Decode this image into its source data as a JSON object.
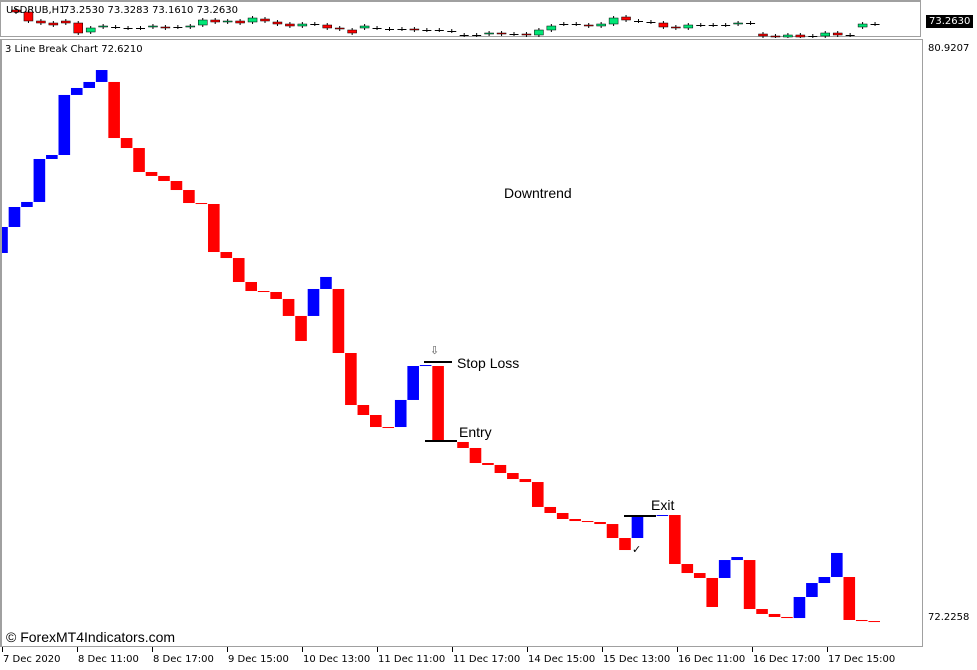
{
  "header": {
    "symbol_info": "USDRUB,H1",
    "ohlc": "73.2530 73.3283 73.1610 73.2630",
    "current_price": "73.2630"
  },
  "indicator": {
    "title": "3 Line Break Chart 72.6210"
  },
  "colors": {
    "up_brick": "#0000ff",
    "down_brick": "#ff0000",
    "bull_candle": "#00e676",
    "bear_candle": "#ff0000",
    "level_line": "#000000"
  },
  "price_axis": {
    "top_label": "80.9207",
    "bottom_label": "72.2258",
    "top_value": 80.9207,
    "bottom_value": 72.2258
  },
  "time_axis": [
    "7 Dec 2020",
    "8 Dec 11:00",
    "8 Dec 17:00",
    "9 Dec 15:00",
    "10 Dec 13:00",
    "11 Dec 11:00",
    "11 Dec 17:00",
    "14 Dec 15:00",
    "15 Dec 13:00",
    "16 Dec 11:00",
    "16 Dec 17:00",
    "17 Dec 15:00"
  ],
  "annotations": {
    "downtrend": "Downtrend",
    "stop_loss": {
      "label": "Stop Loss",
      "price": 76.129,
      "arrow_icon": "down-arrow-icon"
    },
    "entry": {
      "label": "Entry",
      "price": 74.92
    },
    "exit": {
      "label": "Exit",
      "price": 73.772,
      "check_icon": "check-icon"
    }
  },
  "watermark": "© ForexMT4Indicators.com",
  "chart_data": {
    "type": "three-line-break",
    "title": "3 Line Break Chart 72.6210",
    "bricks": [
      [
        77.798,
        78.196
      ],
      [
        78.196,
        78.502
      ],
      [
        78.502,
        78.579
      ],
      [
        78.579,
        79.237
      ],
      [
        79.237,
        79.298
      ],
      [
        79.298,
        80.217
      ],
      [
        80.217,
        80.324
      ],
      [
        80.324,
        80.416
      ],
      [
        80.416,
        80.599
      ],
      [
        80.416,
        79.558
      ],
      [
        79.558,
        79.405
      ],
      [
        79.405,
        79.038
      ],
      [
        79.038,
        78.977
      ],
      [
        78.977,
        78.9
      ],
      [
        78.9,
        78.762
      ],
      [
        78.762,
        78.563
      ],
      [
        78.563,
        78.548
      ],
      [
        78.548,
        77.813
      ],
      [
        77.813,
        77.721
      ],
      [
        77.721,
        77.354
      ],
      [
        77.354,
        77.216
      ],
      [
        77.216,
        77.201
      ],
      [
        77.201,
        77.094
      ],
      [
        77.094,
        76.834
      ],
      [
        76.834,
        76.451
      ],
      [
        76.834,
        77.247
      ],
      [
        77.247,
        77.431
      ],
      [
        77.247,
        76.267
      ],
      [
        76.267,
        75.471
      ],
      [
        75.471,
        75.318
      ],
      [
        75.318,
        75.134
      ],
      [
        75.134,
        75.119
      ],
      [
        75.134,
        75.548
      ],
      [
        75.548,
        76.068
      ],
      [
        76.068,
        76.083
      ],
      [
        76.068,
        74.92
      ],
      [
        74.92,
        74.905
      ],
      [
        74.905,
        74.813
      ],
      [
        74.813,
        74.583
      ],
      [
        74.583,
        74.553
      ],
      [
        74.553,
        74.43
      ],
      [
        74.43,
        74.338
      ],
      [
        74.338,
        74.292
      ],
      [
        74.292,
        73.91
      ],
      [
        73.91,
        73.818
      ],
      [
        73.818,
        73.726
      ],
      [
        73.726,
        73.695
      ],
      [
        73.695,
        73.68
      ],
      [
        73.68,
        73.649
      ],
      [
        73.649,
        73.435
      ],
      [
        73.435,
        73.251
      ],
      [
        73.435,
        73.757
      ],
      [
        73.757,
        73.772
      ],
      [
        73.772,
        73.787
      ],
      [
        73.787,
        73.037
      ],
      [
        73.037,
        72.899
      ],
      [
        72.899,
        72.823
      ],
      [
        72.823,
        72.379
      ],
      [
        72.823,
        73.098
      ],
      [
        73.098,
        73.144
      ],
      [
        73.098,
        72.348
      ],
      [
        72.348,
        72.272
      ],
      [
        72.272,
        72.226
      ],
      [
        72.226,
        72.21
      ],
      [
        72.21,
        72.532
      ],
      [
        72.532,
        72.746
      ],
      [
        72.746,
        72.838
      ],
      [
        72.838,
        73.206
      ],
      [
        72.838,
        72.18
      ],
      [
        72.18,
        72.164
      ],
      [
        72.164,
        72.149
      ]
    ],
    "ylim": [
      72.2258,
      80.9207
    ],
    "mini_candles": [
      [
        73.42,
        73.4
      ],
      [
        73.4,
        73.31
      ],
      [
        73.31,
        73.29
      ],
      [
        73.29,
        73.27
      ],
      [
        73.31,
        73.29
      ],
      [
        73.29,
        73.19
      ],
      [
        73.2,
        73.24
      ],
      [
        73.25,
        73.26
      ],
      [
        73.25,
        73.25
      ],
      [
        73.24,
        73.24
      ],
      [
        73.24,
        73.24
      ],
      [
        73.25,
        73.26
      ],
      [
        73.25,
        73.24
      ],
      [
        73.25,
        73.25
      ],
      [
        73.25,
        73.26
      ],
      [
        73.27,
        73.32
      ],
      [
        73.32,
        73.3
      ],
      [
        73.3,
        73.31
      ],
      [
        73.31,
        73.29
      ],
      [
        73.3,
        73.34
      ],
      [
        73.33,
        73.31
      ],
      [
        73.3,
        73.28
      ],
      [
        73.28,
        73.26
      ],
      [
        73.26,
        73.28
      ],
      [
        73.28,
        73.28
      ],
      [
        73.27,
        73.24
      ],
      [
        73.24,
        73.23
      ],
      [
        73.22,
        73.19
      ],
      [
        73.24,
        73.26
      ],
      [
        73.24,
        73.24
      ],
      [
        73.23,
        73.23
      ],
      [
        73.23,
        73.23
      ],
      [
        73.23,
        73.22
      ],
      [
        73.22,
        73.22
      ],
      [
        73.22,
        73.22
      ],
      [
        73.21,
        73.21
      ],
      [
        73.17,
        73.17
      ],
      [
        73.17,
        73.17
      ],
      [
        73.18,
        73.19
      ],
      [
        73.19,
        73.18
      ],
      [
        73.18,
        73.18
      ],
      [
        73.18,
        73.17
      ],
      [
        73.17,
        73.22
      ],
      [
        73.22,
        73.26
      ],
      [
        73.28,
        73.28
      ],
      [
        73.28,
        73.28
      ],
      [
        73.27,
        73.26
      ],
      [
        73.26,
        73.28
      ],
      [
        73.28,
        73.34
      ],
      [
        73.35,
        73.32
      ],
      [
        73.31,
        73.31
      ],
      [
        73.3,
        73.3
      ],
      [
        73.29,
        73.25
      ],
      [
        73.25,
        73.24
      ],
      [
        73.24,
        73.27
      ],
      [
        73.27,
        73.27
      ],
      [
        73.27,
        73.27
      ],
      [
        73.27,
        73.27
      ],
      [
        73.28,
        73.29
      ],
      [
        73.29,
        73.29
      ],
      [
        73.18,
        73.16
      ],
      [
        73.16,
        73.15
      ],
      [
        73.15,
        73.17
      ],
      [
        73.17,
        73.15
      ],
      [
        73.16,
        73.16
      ],
      [
        73.16,
        73.19
      ],
      [
        73.19,
        73.17
      ],
      [
        73.17,
        73.17
      ],
      [
        73.25,
        73.28
      ],
      [
        73.28,
        73.28
      ]
    ]
  }
}
